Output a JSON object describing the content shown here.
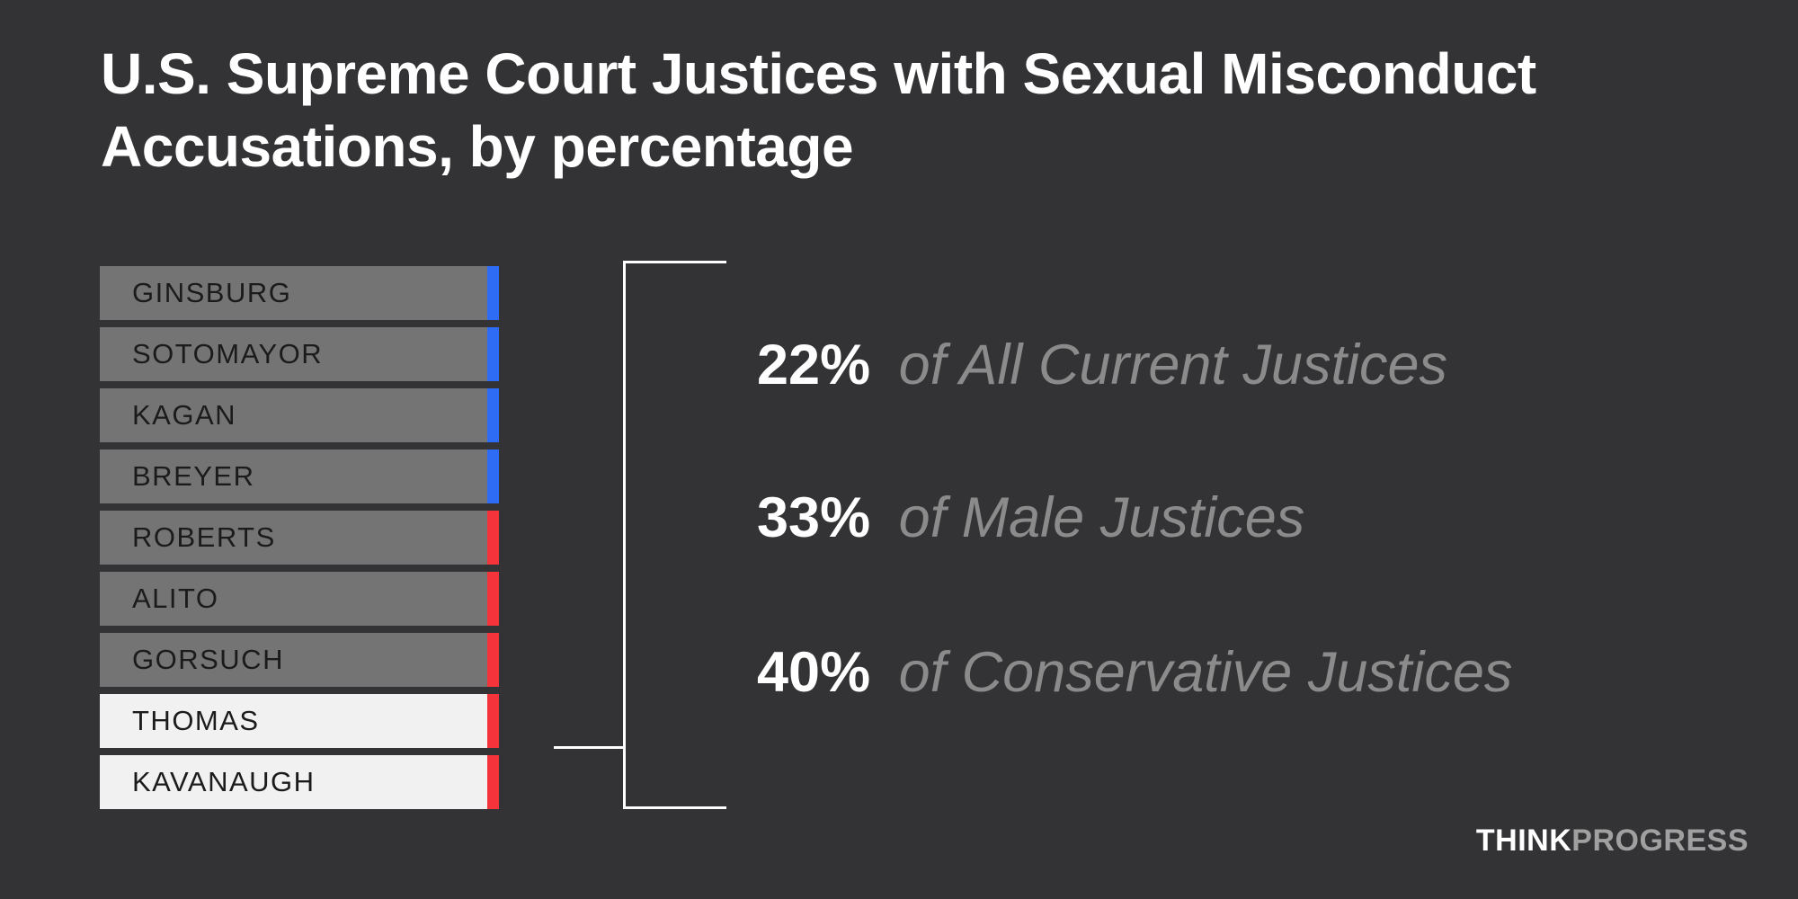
{
  "title": {
    "line1": "U.S. Supreme Court Justices with Sexual Misconduct",
    "line2": "Accusations, by percentage"
  },
  "chart_data": {
    "type": "bar",
    "title": "U.S. Supreme Court Justices with Sexual Misconduct Accusations, by percentage",
    "categories": [
      "GINSBURG",
      "SOTOMAYOR",
      "KAGAN",
      "BREYER",
      "ROBERTS",
      "ALITO",
      "GORSUCH",
      "THOMAS",
      "KAVANAUGH"
    ],
    "justices": [
      {
        "name": "GINSBURG",
        "wing": "liberal",
        "accused": false
      },
      {
        "name": "SOTOMAYOR",
        "wing": "liberal",
        "accused": false
      },
      {
        "name": "KAGAN",
        "wing": "liberal",
        "accused": false
      },
      {
        "name": "BREYER",
        "wing": "liberal",
        "accused": false
      },
      {
        "name": "ROBERTS",
        "wing": "conservative",
        "accused": false
      },
      {
        "name": "ALITO",
        "wing": "conservative",
        "accused": false
      },
      {
        "name": "GORSUCH",
        "wing": "conservative",
        "accused": false
      },
      {
        "name": "THOMAS",
        "wing": "conservative",
        "accused": true
      },
      {
        "name": "KAVANAUGH",
        "wing": "conservative",
        "accused": true
      }
    ],
    "annotations": [
      {
        "value": "22%",
        "label": "of All Current Justices"
      },
      {
        "value": "33%",
        "label": "of Male Justices"
      },
      {
        "value": "40%",
        "label": "of Conservative Justices"
      }
    ],
    "grid": false,
    "legend_position": "none"
  },
  "colors": {
    "background": "#333234",
    "bar": "#747474",
    "bar_accused": "#f1f1f1",
    "liberal_accent": "#2e6cf6",
    "conservative_accent": "#f4333a",
    "bar_label": "#1b1b1b",
    "bracket": "#ffffff",
    "stat_value": "#ffffff",
    "stat_label": "#8b8b8b",
    "logo_think": "#ffffff",
    "logo_progress": "#a0a0a0"
  },
  "logo": {
    "think": "THINK",
    "progress": "PROGRESS"
  }
}
